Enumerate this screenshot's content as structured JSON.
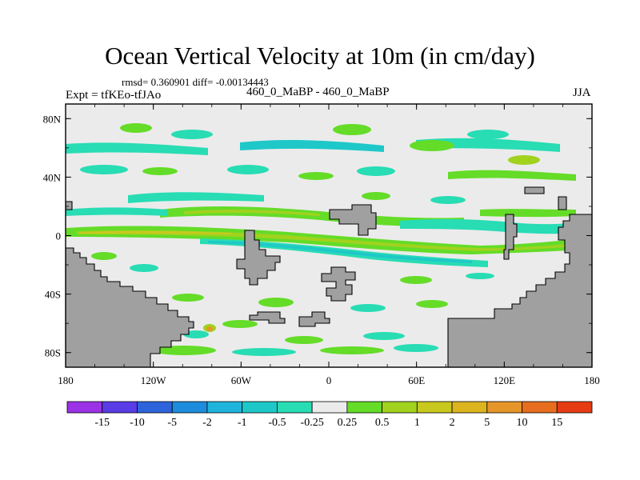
{
  "title": "Ocean Vertical Velocity at 10m (in cm/day)",
  "stats": "rmsd= 0.360901 diff= -0.00134443",
  "experiment": "Expt = tfKEo-tfJAo",
  "case": "460_0_MaBP - 460_0_MaBP",
  "season": "JJA",
  "y_ticks": [
    "80N",
    "40N",
    "0",
    "40S",
    "80S"
  ],
  "x_ticks": [
    "180",
    "120W",
    "60W",
    "0",
    "60E",
    "120E",
    "180"
  ],
  "colorbar": {
    "labels": [
      "-15",
      "-10",
      "-5",
      "-2",
      "-1",
      "-0.5",
      "-0.25",
      "0.25",
      "0.5",
      "1",
      "2",
      "5",
      "10",
      "15"
    ],
    "colors": [
      "#9b32e6",
      "#5a3ce6",
      "#2d64dc",
      "#1e8cdc",
      "#1eb4dc",
      "#1ec8c8",
      "#28dcb4",
      "#ebebeb",
      "#64dc28",
      "#a0d21e",
      "#c8c81e",
      "#dcb41e",
      "#e69628",
      "#e66e1e",
      "#e63c14"
    ]
  },
  "colors": {
    "land": "#a0a0a0",
    "ocean": "#ebebeb",
    "pos_low": "#64dc28",
    "pos_mid": "#a0d21e",
    "pos_high": "#c8c81e",
    "pos_peak": "#e69628",
    "neg_low": "#28dcb4",
    "neg_mid": "#1ec8c8",
    "neg_high": "#1eb4dc"
  }
}
